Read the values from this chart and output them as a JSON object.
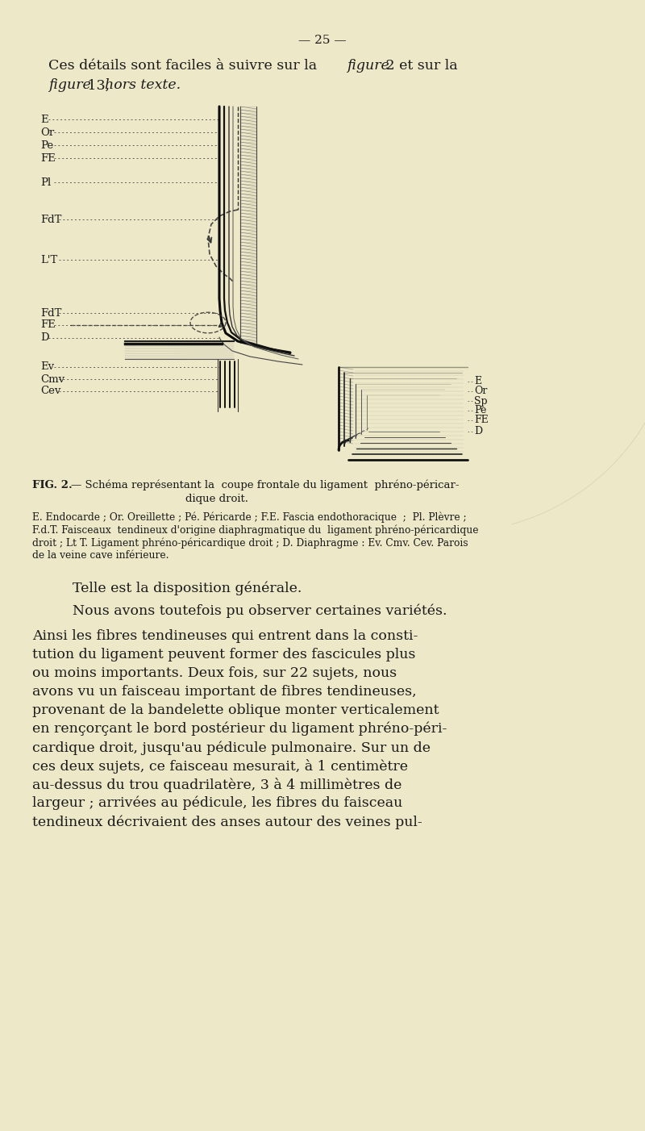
{
  "bg_color": "#ede8c8",
  "page_number": "25",
  "text_color": "#1a1a1a",
  "dotted_color": "#444444",
  "left_labels": [
    [
      "E",
      148
    ],
    [
      "Or",
      164
    ],
    [
      "Pe",
      180
    ],
    [
      "FE",
      196
    ],
    [
      "Pl",
      226
    ],
    [
      "FdT",
      272
    ],
    [
      "L'T",
      322
    ],
    [
      "FdT",
      388
    ],
    [
      "FE",
      403
    ],
    [
      "D",
      419
    ],
    [
      "Ev",
      455
    ],
    [
      "Cmv",
      470
    ],
    [
      "Cev",
      485
    ]
  ],
  "right_labels": [
    [
      "E",
      473
    ],
    [
      "Or",
      485
    ],
    [
      "Sp",
      497
    ],
    [
      "Pe",
      509
    ],
    [
      "FE",
      521
    ],
    [
      "D",
      535
    ]
  ],
  "intro_line1_normal": "Ces détails sont faciles à suivre sur la ",
  "intro_line1_italic": "figure",
  "intro_line1_normal2": " 2 et sur la",
  "intro_line2_italic1": "figure",
  "intro_line2_normal": " 13, ",
  "intro_line2_italic2": "hors texte.",
  "fig_caption_line1": "FIG. 2. — Schéma représentant la  coupe frontale du ligament  phréno-péricar-",
  "fig_caption_line2": "dique droit.",
  "legend_lines": [
    "E. Endocarde ; Or. Oreillette ; Pé. Péricarde ; F.E. Fascia endothoracique  ;  Pl. Plèvre ;",
    "F.d.T. Faisceaux  tendineux d'origine diaphragmatique du  ligament phréno-péricardique",
    "droit ; Lt T. Ligament phréno-péricardique droit ; D. Diaphragme : Ev. Cmv. Cev. Parois",
    "de la veine cave inférieure."
  ],
  "body_para1": "Telle est la disposition générale.",
  "body_para2": "Nous avons toutefois pu observer certaines variétés.",
  "body_lines": [
    "Ainsi les fibres tendineuses qui entrent dans la consti-",
    "tution du ligament peuvent former des fascicules plus",
    "ou moins importants. Deux fois, sur 22 sujets, nous",
    "avons vu un faisceau important de fibres tendineuses,",
    "provenant de la bandelette oblique monter verticalement",
    "en rençorçant le bord postérieur du ligament phréno-péri-",
    "cardique droit, jusqu'au pédicule pulmonaire. Sur un de",
    "ces deux sujets, ce faisceau mesurait, à 1 centimètre",
    "au-dessus du trou quadrilatère, 3 à 4 millimètres de",
    "largeur ; arrivées au pédicule, les fibres du faisceau",
    "tendineux décrivaient des anses autour des veines pul-"
  ]
}
